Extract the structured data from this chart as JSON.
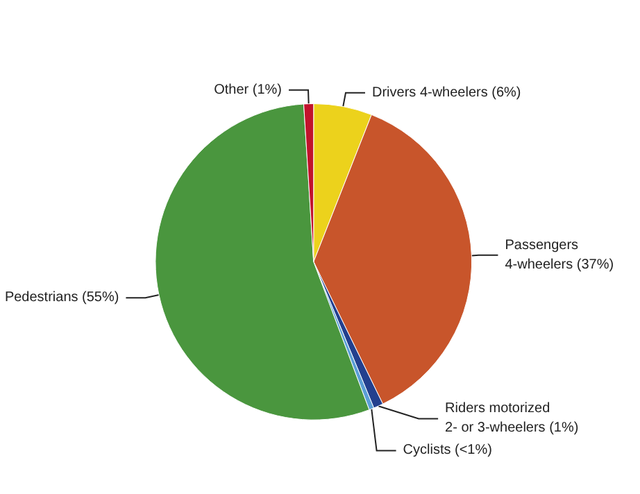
{
  "chart_data": {
    "type": "pie",
    "categories": [
      "Drivers 4-wheelers (6%)",
      "Passengers\n4-wheelers (37%)",
      "Riders motorized\n2- or 3-wheelers (1%)",
      "Cyclists (<1%)",
      "Pedestrians (55%)",
      "Other (1%)"
    ],
    "values": [
      6,
      37,
      1,
      0.5,
      55,
      1
    ],
    "colors": [
      "#ecd21c",
      "#c8552b",
      "#23408e",
      "#5b9fd6",
      "#4a963e",
      "#c1122c"
    ],
    "legend": false
  }
}
